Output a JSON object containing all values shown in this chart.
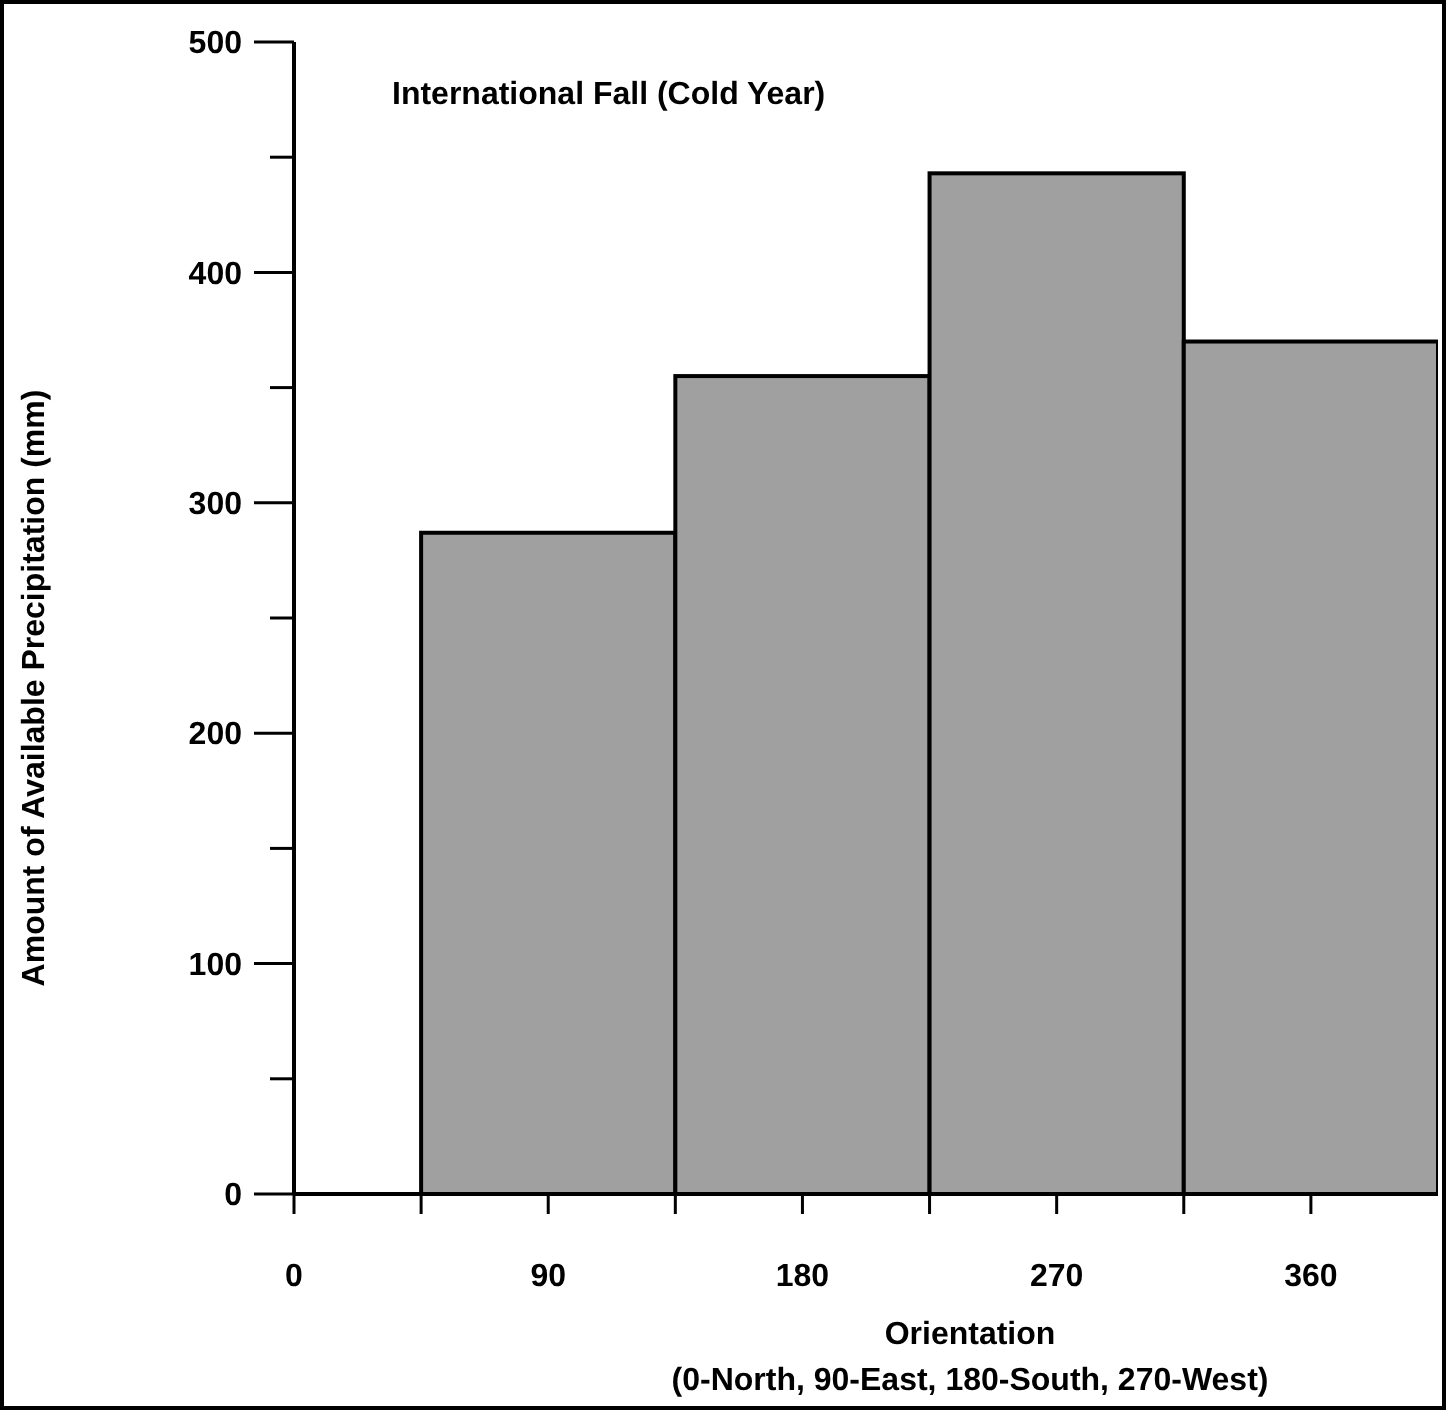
{
  "chart_data": {
    "type": "histogram",
    "title": "International Fall (Cold Year)",
    "xlabel": "Orientation\n(0-North, 90-East, 180-South, 270-West)",
    "ylabel": "Amount of Available Precipitation (mm)",
    "bins": [
      45,
      135,
      225,
      315,
      405
    ],
    "values": [
      287,
      355,
      443,
      370
    ],
    "color": "#a0a0a0",
    "xlim": [
      0,
      405
    ],
    "xticks": [
      0,
      {
        "value": 45,
        "label": null
      },
      90,
      {
        "value": 135,
        "label": null
      },
      180,
      {
        "value": 225,
        "label": null
      },
      270,
      {
        "value": 315,
        "label": null
      },
      360
    ],
    "ylim": [
      0,
      500
    ],
    "yticks": [
      0,
      {
        "value": 50,
        "label": null
      },
      100,
      {
        "value": 150,
        "label": null
      },
      200,
      {
        "value": 250,
        "label": null
      },
      300,
      {
        "value": 350,
        "label": null
      },
      400,
      {
        "value": 450,
        "label": null
      },
      500
    ],
    "grid": false
  }
}
